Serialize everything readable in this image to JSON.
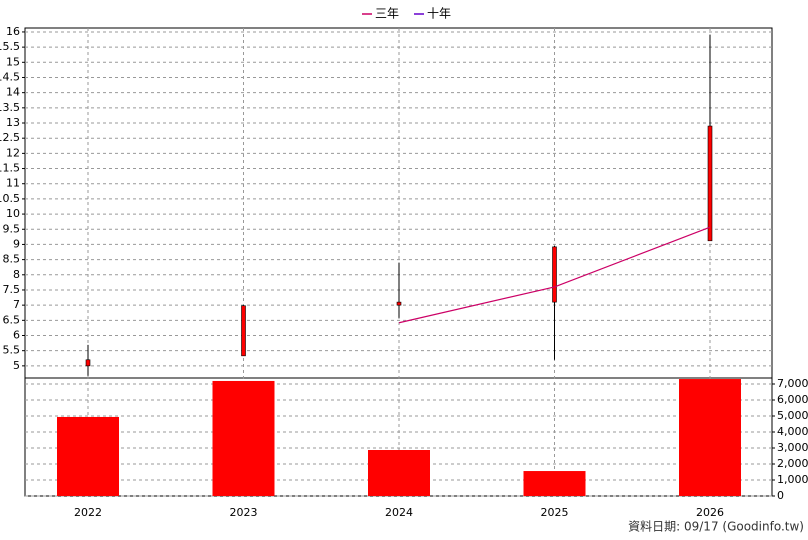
{
  "chart_data": {
    "type": "candlestick",
    "categories": [
      "2022",
      "2023",
      "2024",
      "2025",
      "2026"
    ],
    "open": [
      5.0,
      5.33,
      7.0,
      7.1,
      9.12
    ],
    "high": [
      5.69,
      7.0,
      8.39,
      8.95,
      15.9
    ],
    "low": [
      4.67,
      5.33,
      6.58,
      5.2,
      9.12
    ],
    "close": [
      5.2,
      6.98,
      7.1,
      8.92,
      12.9
    ],
    "candle_color": "#ff0000",
    "ylim": [
      4.6,
      16.13
    ],
    "yticks": [
      5,
      5.5,
      6,
      6.5,
      7,
      7.5,
      8,
      8.5,
      9,
      9.5,
      10,
      10.5,
      11,
      11.5,
      12,
      12.5,
      13,
      13.5,
      14,
      14.5,
      15,
      15.5,
      16
    ],
    "volume": {
      "values": [
        4940,
        7190,
        2875,
        1560,
        7310
      ],
      "color": "#ff0000",
      "y2lim": [
        0,
        7375
      ],
      "y2ticks": [
        0,
        {
          "value": 1000,
          "label": "1,000"
        },
        {
          "value": 2000,
          "label": "2,000"
        },
        {
          "value": 3000,
          "label": "3,000"
        },
        {
          "value": 4000,
          "label": "4,000"
        },
        {
          "value": 5000,
          "label": "5,000"
        },
        {
          "value": 6000,
          "label": "6,000"
        },
        {
          "value": 7000,
          "label": "7,000"
        }
      ]
    },
    "series": [
      {
        "name": "三年",
        "color": "#cc0066",
        "values": [
          null,
          null,
          6.42,
          7.6,
          9.57
        ]
      },
      {
        "name": "十年",
        "color": "#6600cc",
        "values": [
          null,
          null,
          null,
          null,
          null
        ]
      }
    ],
    "grid": true
  },
  "footer": "資料日期: 09/17  (Goodinfo.tw)"
}
